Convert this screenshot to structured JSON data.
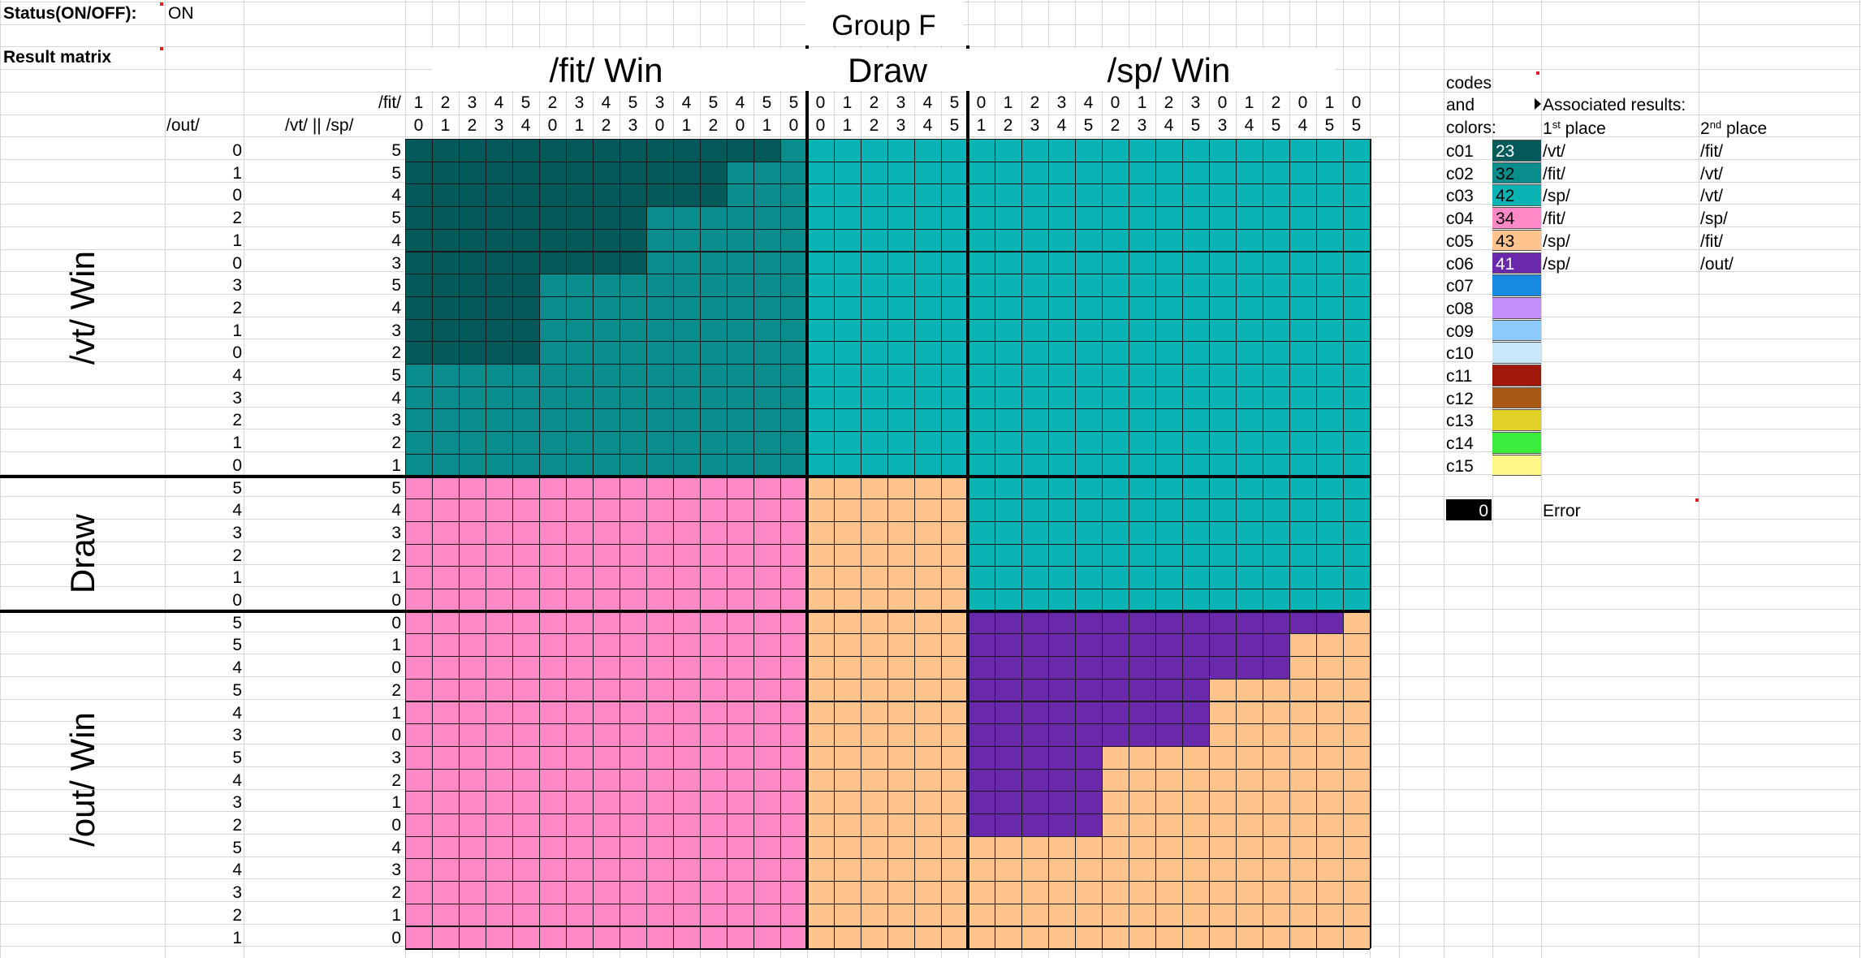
{
  "status": {
    "label": "Status(ON/OFF):",
    "value": "ON"
  },
  "result_matrix_label": "Result matrix",
  "group_title": "Group F",
  "top_headers": {
    "fit_win": "/fit/ Win",
    "draw": "Draw",
    "sp_win": "/sp/ Win"
  },
  "side_headers": {
    "vt_win": "/vt/ Win",
    "draw": "Draw",
    "out_win": "/out/ Win"
  },
  "corner": {
    "fit": "/fit/",
    "out": "/out/",
    "vt_sp": "/vt/ || /sp/"
  },
  "fit_score_row": [
    1,
    2,
    3,
    4,
    5,
    2,
    3,
    4,
    5,
    3,
    4,
    5,
    4,
    5,
    5,
    0,
    1,
    2,
    3,
    4,
    5,
    0,
    1,
    2,
    3,
    4,
    0,
    1,
    2,
    3,
    0,
    1,
    2,
    0,
    1,
    0
  ],
  "sp_score_row": [
    0,
    1,
    2,
    3,
    4,
    0,
    1,
    2,
    3,
    0,
    1,
    2,
    0,
    1,
    0,
    0,
    1,
    2,
    3,
    4,
    5,
    1,
    2,
    3,
    4,
    5,
    2,
    3,
    4,
    5,
    3,
    4,
    5,
    4,
    5,
    5
  ],
  "out_score_col": [
    0,
    1,
    0,
    2,
    1,
    0,
    3,
    2,
    1,
    0,
    4,
    3,
    2,
    1,
    0,
    5,
    4,
    3,
    2,
    1,
    0,
    5,
    5,
    4,
    5,
    4,
    3,
    5,
    4,
    3,
    2,
    5,
    4,
    3,
    2,
    1
  ],
  "vtsp_score_col": [
    5,
    5,
    4,
    5,
    4,
    3,
    5,
    4,
    3,
    2,
    5,
    4,
    3,
    2,
    1,
    5,
    4,
    3,
    2,
    1,
    0,
    0,
    1,
    0,
    2,
    1,
    0,
    3,
    2,
    1,
    0,
    4,
    3,
    2,
    1,
    0
  ],
  "legend": {
    "header_codes": [
      "codes",
      "and",
      "colors:"
    ],
    "associated_label": "Associated results:",
    "first_place": {
      "base": "1",
      "sup": "st",
      "rest": " place"
    },
    "second_place": {
      "base": "2",
      "sup": "nd",
      "rest": " place"
    },
    "rows": [
      {
        "code": "c01",
        "color": "#045a5a",
        "count": "23",
        "first": "/vt/",
        "second": "/fit/",
        "text_color": "#ffffff"
      },
      {
        "code": "c02",
        "color": "#088c8c",
        "count": "32",
        "first": "/fit/",
        "second": "/vt/",
        "text_color": "#000000"
      },
      {
        "code": "c03",
        "color": "#0ab4b4",
        "count": "42",
        "first": "/sp/",
        "second": "/vt/",
        "text_color": "#000000"
      },
      {
        "code": "c04",
        "color": "#ff88c6",
        "count": "34",
        "first": "/fit/",
        "second": "/sp/",
        "text_color": "#000000"
      },
      {
        "code": "c05",
        "color": "#ffc48c",
        "count": "43",
        "first": "/sp/",
        "second": "/fit/",
        "text_color": "#000000"
      },
      {
        "code": "c06",
        "color": "#6a28aa",
        "count": "41",
        "first": "/sp/",
        "second": "/out/",
        "text_color": "#ffffff"
      },
      {
        "code": "c07",
        "color": "#1689e0",
        "count": "",
        "first": "",
        "second": "",
        "text_color": "#000000"
      },
      {
        "code": "c08",
        "color": "#c48ef8",
        "count": "",
        "first": "",
        "second": "",
        "text_color": "#000000"
      },
      {
        "code": "c09",
        "color": "#8ecafc",
        "count": "",
        "first": "",
        "second": "",
        "text_color": "#000000"
      },
      {
        "code": "c10",
        "color": "#c8e8fa",
        "count": "",
        "first": "",
        "second": "",
        "text_color": "#000000"
      },
      {
        "code": "c11",
        "color": "#a0180c",
        "count": "",
        "first": "",
        "second": "",
        "text_color": "#000000"
      },
      {
        "code": "c12",
        "color": "#a85a14",
        "count": "",
        "first": "",
        "second": "",
        "text_color": "#000000"
      },
      {
        "code": "c13",
        "color": "#e2d228",
        "count": "",
        "first": "",
        "second": "",
        "text_color": "#000000"
      },
      {
        "code": "c14",
        "color": "#3cec3c",
        "count": "",
        "first": "",
        "second": "",
        "text_color": "#000000"
      },
      {
        "code": "c15",
        "color": "#fef888",
        "count": "",
        "first": "",
        "second": "",
        "text_color": "#000000"
      }
    ]
  },
  "error": {
    "value": "0",
    "label": "Error"
  }
}
